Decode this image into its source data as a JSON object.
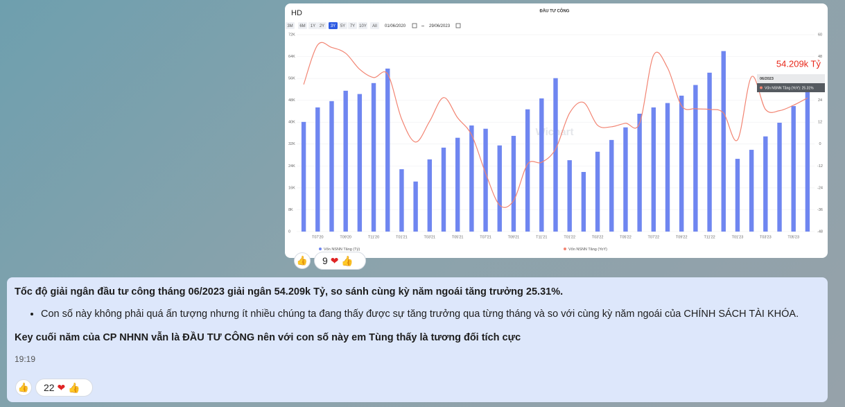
{
  "chart_card": {
    "ticker": "HD",
    "range_buttons": [
      "3M",
      "6M",
      "1Y",
      "2Y",
      "3Y",
      "5Y",
      "7Y",
      "10Y",
      "All"
    ],
    "date_from": "01/06/2020",
    "date_to": "29/06/2023",
    "watermark": "Wichart",
    "tooltip": {
      "date": "06/2023",
      "label": "Vốn NSNN Tăng (YoY): 25.31%",
      "value_label": "54.209k Tỷ"
    }
  },
  "chart_data": {
    "type": "bar",
    "title": "ĐẦU TƯ CÔNG",
    "categories": [
      null,
      "T07'20",
      null,
      "T09'20",
      null,
      "T11'20",
      null,
      "T01'21",
      null,
      "T03'21",
      null,
      "T05'21",
      null,
      "T07'21",
      null,
      "T09'21",
      null,
      "T11'21",
      null,
      "T01'22",
      null,
      "T03'22",
      null,
      "T05'22",
      null,
      "T07'22",
      null,
      "T09'22",
      null,
      "T11'22",
      null,
      "T01'23",
      null,
      "T03'23",
      null,
      "T05'23",
      null
    ],
    "series": [
      {
        "name": "Vốn NSNN Tăng (Tỷ)",
        "type": "bar",
        "color": "#6f86f0",
        "values": [
          40100,
          45400,
          47700,
          51500,
          50300,
          54300,
          59600,
          22800,
          18300,
          26400,
          30700,
          34300,
          38800,
          37600,
          31500,
          35000,
          44700,
          48700,
          56100,
          26100,
          21800,
          29200,
          33500,
          38100,
          43100,
          45400,
          47000,
          49700,
          53600,
          58100,
          66000,
          26600,
          29900,
          34800,
          39800,
          45900,
          54209
        ]
      },
      {
        "name": "Vốn NSNN Tăng (YoY)",
        "type": "line",
        "axis": "y2",
        "color": "#f28472",
        "values": [
          32.7,
          54.4,
          53,
          49.8,
          41,
          36.5,
          38.4,
          13.7,
          1.1,
          12.5,
          25.5,
          14.4,
          5,
          -16,
          -33.5,
          -31,
          -11,
          -10,
          -2.7,
          17,
          22.8,
          10.3,
          9.5,
          11.4,
          11.4,
          48.7,
          41.8,
          21,
          19.4,
          19,
          17,
          2.3,
          36.9,
          19,
          18.3,
          21.3,
          25.31
        ]
      }
    ],
    "ylim": [
      0,
      72000
    ],
    "yticks": [
      0,
      {
        "value": 8000,
        "label": "8K"
      },
      {
        "value": 16000,
        "label": "16K"
      },
      {
        "value": 24000,
        "label": "24K"
      },
      {
        "value": 32000,
        "label": "32K"
      },
      {
        "value": 40000,
        "label": "40K"
      },
      {
        "value": 48000,
        "label": "48K"
      },
      {
        "value": 56000,
        "label": "56K"
      },
      {
        "value": 64000,
        "label": "64K"
      },
      {
        "value": 72000,
        "label": "72K"
      }
    ],
    "y2lim": [
      -48,
      60
    ],
    "y2ticks": [
      -48,
      -36,
      -24,
      -12,
      0,
      12,
      24,
      36,
      48,
      60
    ],
    "grid": true
  },
  "chart_reactions": {
    "count": "9"
  },
  "message": {
    "paragraph_1": "Tốc độ giải ngân đầu tư công tháng 06/2023 giải ngân 54.209k Tỷ, so sánh cùng kỳ năm ngoái tăng trưởng 25.31%.",
    "bullet": "Con số này không phải quá ấn tượng nhưng ít nhiều chúng ta đang thấy được sự tăng trưởng qua từng tháng và so với cùng kỳ năm ngoái của CHÍNH SÁCH TÀI KHÓA.",
    "paragraph_2": "Key cuối năm của CP NHNN vẫn là ĐẦU TƯ CÔNG nên với con số này em Tùng thấy là tương đối tích cực",
    "time": "19:19",
    "reactions": {
      "count": "22"
    }
  }
}
